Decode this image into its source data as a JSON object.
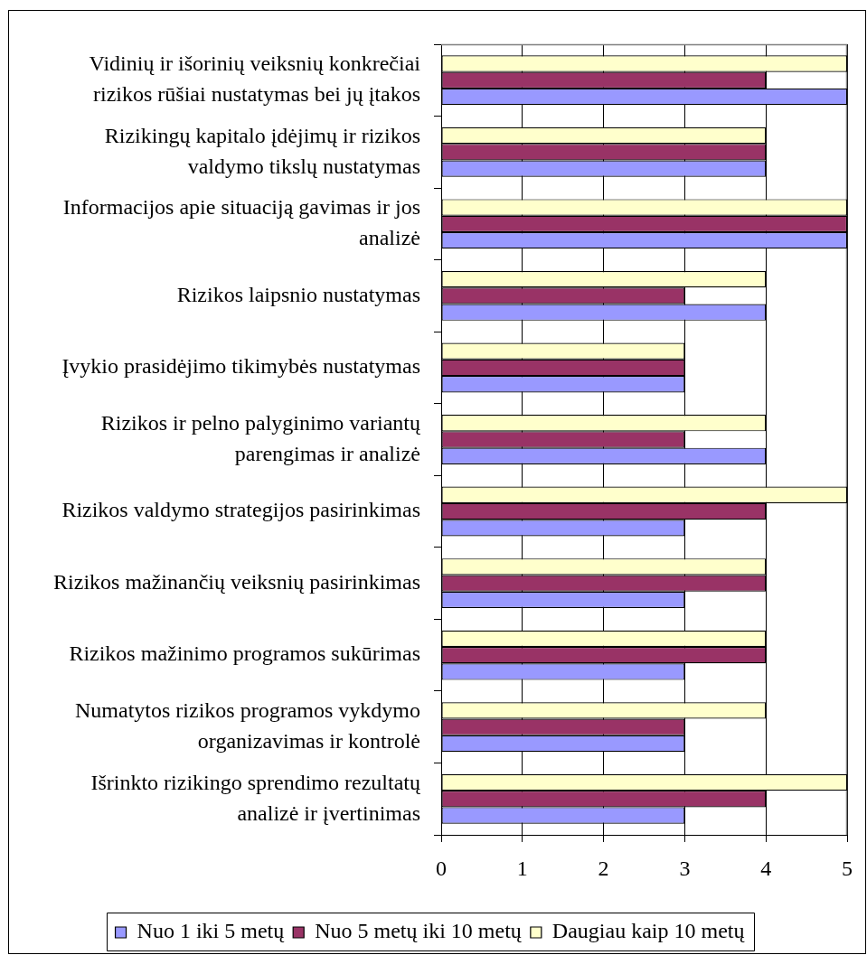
{
  "chart_data": {
    "type": "bar",
    "orientation": "horizontal",
    "categories": [
      "Vidinių ir išorinių veiksnių konkrečiai rizikos rūšiai nustatymas bei jų įtakos",
      "Rizikingų kapitalo įdėjimų ir rizikos valdymo tikslų nustatymas",
      "Informacijos apie situaciją gavimas ir jos analizė",
      "Rizikos laipsnio nustatymas",
      "Įvykio prasidėjimo tikimybės nustatymas",
      "Rizikos ir pelno palyginimo variantų parengimas ir analizė",
      "Rizikos valdymo strategijos pasirinkimas",
      "Rizikos mažinančių veiksnių pasirinkimas",
      "Rizikos mažinimo programos sukūrimas",
      "Numatytos rizikos programos vykdymo organizavimas ir kontrolė",
      "Išrinkto rizikingo sprendimo rezultatų analizė ir įvertinimas"
    ],
    "series": [
      {
        "name": "Nuo 1 iki 5 metų",
        "color": "#9999ff",
        "values": [
          5,
          4,
          5,
          4,
          3,
          4,
          3,
          3,
          3,
          3,
          3
        ]
      },
      {
        "name": "Nuo 5 metų iki 10 metų",
        "color": "#993366",
        "values": [
          4,
          4,
          5,
          3,
          3,
          3,
          4,
          4,
          4,
          3,
          4
        ]
      },
      {
        "name": "Daugiau kaip 10 metų",
        "color": "#ffffcc",
        "values": [
          5,
          4,
          5,
          4,
          3,
          4,
          5,
          4,
          4,
          4,
          5
        ]
      }
    ],
    "xlim": [
      0,
      5
    ],
    "xticks": [
      0,
      1,
      2,
      3,
      4,
      5
    ],
    "grid": "x",
    "legend": "bottom"
  }
}
